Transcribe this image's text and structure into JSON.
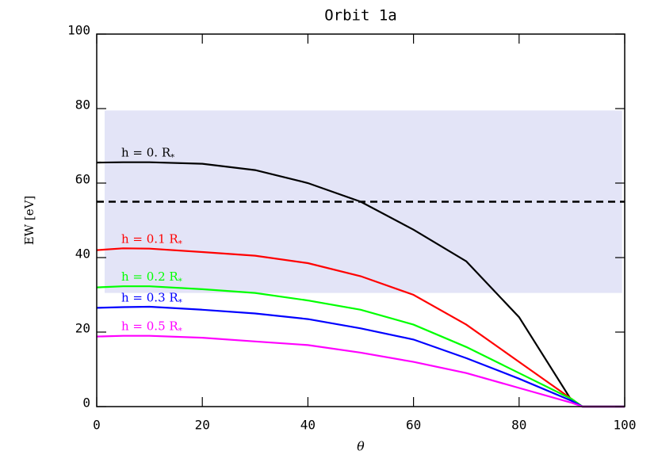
{
  "chart_data": {
    "type": "line",
    "title": "Orbit 1a",
    "x_label": "θ",
    "y_label": "EW [eV]",
    "x": [
      0,
      5,
      10,
      20,
      30,
      40,
      50,
      60,
      70,
      80,
      90,
      92,
      100
    ],
    "series": [
      {
        "name": "h = 0. R",
        "sub": "*",
        "color": "#000000",
        "values": [
          65.5,
          65.6,
          65.6,
          65.2,
          63.5,
          60,
          55,
          47.5,
          39,
          24,
          1.5,
          0,
          0
        ]
      },
      {
        "name": "h = 0.1 R",
        "sub": "*",
        "color": "#ff0000",
        "values": [
          42,
          42.5,
          42.4,
          41.5,
          40.5,
          38.5,
          35,
          30,
          22,
          12,
          2,
          0,
          0
        ]
      },
      {
        "name": "h = 0.2 R",
        "sub": "*",
        "color": "#00ff00",
        "values": [
          32,
          32.3,
          32.3,
          31.5,
          30.5,
          28.5,
          26,
          22,
          16,
          9,
          2,
          0,
          0
        ]
      },
      {
        "name": "h = 0.3 R",
        "sub": "*",
        "color": "#0000ff",
        "values": [
          26.5,
          26.7,
          26.8,
          26,
          25,
          23.5,
          21,
          18,
          13,
          7.5,
          1.5,
          0,
          0
        ]
      },
      {
        "name": "h = 0.5 R",
        "sub": "*",
        "color": "#ff00ff",
        "values": [
          18.8,
          19,
          19,
          18.5,
          17.5,
          16.5,
          14.5,
          12,
          9,
          5,
          1,
          0,
          0
        ]
      }
    ],
    "band": [
      30.5,
      79.5
    ],
    "band_x": [
      1.5,
      99.5
    ],
    "band_color": "#e3e4f7",
    "hline": 55,
    "xlim": [
      0,
      100
    ],
    "ylim": [
      0,
      100
    ],
    "xticks": [
      0,
      20,
      40,
      60,
      80,
      100
    ],
    "yticks": [
      0,
      20,
      40,
      60,
      80,
      100
    ]
  }
}
